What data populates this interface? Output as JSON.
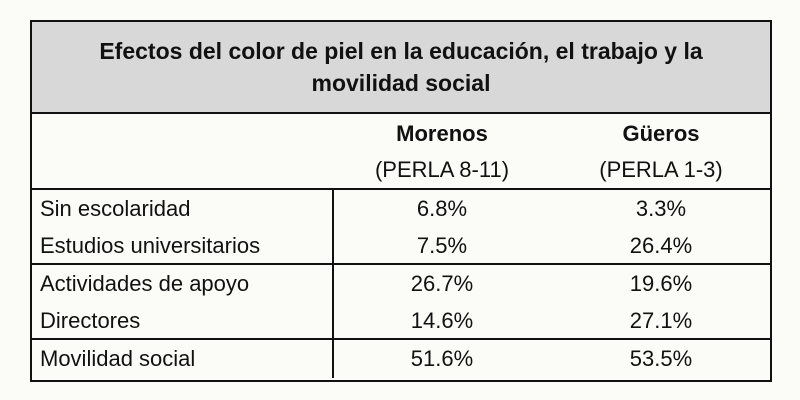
{
  "title": "Efectos del color de piel en la educación, el trabajo y la movilidad social",
  "columns": [
    {
      "name": "Morenos",
      "subtitle": "(PERLA 8-11)"
    },
    {
      "name": "Güeros",
      "subtitle": "(PERLA 1-3)"
    }
  ],
  "groups": [
    {
      "rows": [
        {
          "label": "Sin escolaridad",
          "values": [
            "6.8%",
            "3.3%"
          ]
        },
        {
          "label": "Estudios universitarios",
          "values": [
            "7.5%",
            "26.4%"
          ]
        }
      ]
    },
    {
      "rows": [
        {
          "label": "Actividades de apoyo",
          "values": [
            "26.7%",
            "19.6%"
          ]
        },
        {
          "label": "Directores",
          "values": [
            "14.6%",
            "27.1%"
          ]
        }
      ]
    },
    {
      "rows": [
        {
          "label": "Movilidad social",
          "values": [
            "51.6%",
            "53.5%"
          ]
        }
      ]
    }
  ]
}
